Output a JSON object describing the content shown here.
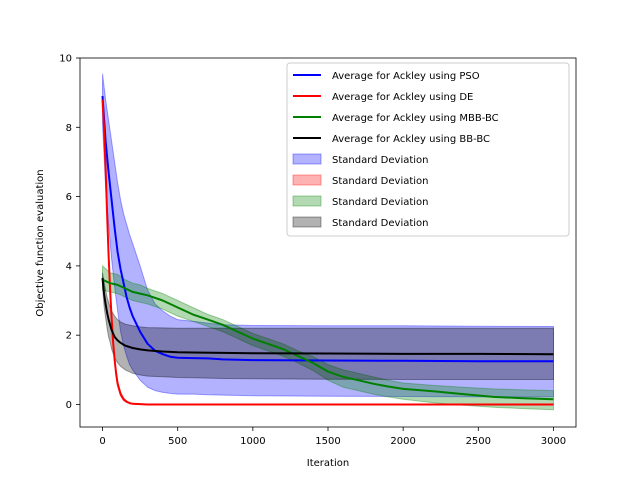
{
  "chart_data": {
    "type": "line",
    "title": "",
    "xlabel": "Iteration",
    "ylabel": "Objective function evaluation",
    "xlim": [
      -150,
      3150
    ],
    "ylim": [
      -0.65,
      10.0
    ],
    "xticks": [
      0,
      500,
      1000,
      1500,
      2000,
      2500,
      3000
    ],
    "yticks": [
      0,
      2,
      4,
      6,
      8,
      10
    ],
    "grid": false,
    "legend_position": "top-right",
    "series": [
      {
        "name": "Average for Ackley using PSO",
        "color": "#0000ff",
        "std_name": "Standard Deviation",
        "x": [
          0,
          20,
          40,
          60,
          80,
          100,
          120,
          140,
          160,
          180,
          200,
          250,
          300,
          350,
          400,
          450,
          500,
          600,
          700,
          800,
          1000,
          1500,
          2000,
          2500,
          3000
        ],
        "y": [
          8.9,
          7.6,
          6.7,
          5.9,
          5.1,
          4.4,
          3.9,
          3.5,
          3.1,
          2.8,
          2.55,
          2.1,
          1.75,
          1.55,
          1.45,
          1.38,
          1.35,
          1.34,
          1.33,
          1.3,
          1.28,
          1.27,
          1.26,
          1.25,
          1.25
        ],
        "upper": [
          9.55,
          8.8,
          8.2,
          7.6,
          7.0,
          6.4,
          5.9,
          5.5,
          5.2,
          4.9,
          4.65,
          4.0,
          3.3,
          2.9,
          2.7,
          2.55,
          2.45,
          2.4,
          2.35,
          2.3,
          2.28,
          2.27,
          2.27,
          2.26,
          2.25
        ],
        "lower": [
          8.1,
          6.3,
          5.2,
          4.2,
          3.4,
          2.7,
          2.1,
          1.7,
          1.4,
          1.15,
          1.0,
          0.7,
          0.5,
          0.4,
          0.35,
          0.32,
          0.3,
          0.3,
          0.28,
          0.27,
          0.25,
          0.24,
          0.23,
          0.22,
          0.22
        ]
      },
      {
        "name": "Average for Ackley using DE",
        "color": "#ff0000",
        "std_name": "Standard Deviation",
        "x": [
          0,
          10,
          20,
          30,
          40,
          50,
          60,
          70,
          80,
          90,
          100,
          120,
          140,
          160,
          180,
          200,
          250,
          300,
          400,
          500,
          1000,
          2000,
          3000
        ],
        "y": [
          8.8,
          8.0,
          6.8,
          5.5,
          4.3,
          3.3,
          2.5,
          1.8,
          1.3,
          0.9,
          0.6,
          0.3,
          0.15,
          0.08,
          0.04,
          0.02,
          0.01,
          0.0,
          0.0,
          0.0,
          0.0,
          0.0,
          0.0
        ],
        "upper": [
          8.9,
          8.15,
          6.95,
          5.65,
          4.45,
          3.45,
          2.6,
          1.9,
          1.4,
          1.0,
          0.68,
          0.36,
          0.19,
          0.1,
          0.05,
          0.03,
          0.015,
          0.01,
          0.01,
          0.01,
          0.01,
          0.01,
          0.01
        ],
        "lower": [
          8.7,
          7.85,
          6.65,
          5.35,
          4.15,
          3.15,
          2.4,
          1.7,
          1.2,
          0.8,
          0.52,
          0.24,
          0.11,
          0.06,
          0.03,
          0.01,
          0.005,
          0.0,
          0.0,
          0.0,
          0.0,
          0.0,
          0.0
        ]
      },
      {
        "name": "Average for Ackley using MBB-BC",
        "color": "#008000",
        "std_name": "Standard Deviation",
        "x": [
          0,
          50,
          100,
          150,
          200,
          250,
          300,
          400,
          500,
          600,
          700,
          800,
          900,
          1000,
          1100,
          1200,
          1300,
          1400,
          1500,
          1600,
          1700,
          1800,
          1900,
          2000,
          2200,
          2400,
          2600,
          2800,
          3000
        ],
        "y": [
          3.6,
          3.5,
          3.45,
          3.35,
          3.25,
          3.2,
          3.15,
          3.0,
          2.8,
          2.6,
          2.45,
          2.3,
          2.1,
          1.9,
          1.75,
          1.6,
          1.4,
          1.2,
          0.95,
          0.8,
          0.7,
          0.6,
          0.52,
          0.45,
          0.38,
          0.3,
          0.22,
          0.18,
          0.15
        ],
        "upper": [
          4.0,
          3.8,
          3.75,
          3.6,
          3.5,
          3.45,
          3.35,
          3.2,
          3.0,
          2.8,
          2.6,
          2.45,
          2.25,
          2.05,
          1.9,
          1.75,
          1.55,
          1.38,
          1.15,
          1.0,
          0.9,
          0.8,
          0.7,
          0.62,
          0.55,
          0.5,
          0.45,
          0.42,
          0.4
        ],
        "lower": [
          3.3,
          3.25,
          3.2,
          3.1,
          3.0,
          2.95,
          2.9,
          2.75,
          2.55,
          2.4,
          2.25,
          2.1,
          1.9,
          1.7,
          1.55,
          1.4,
          1.2,
          0.98,
          0.7,
          0.5,
          0.4,
          0.3,
          0.22,
          0.15,
          0.05,
          -0.02,
          -0.08,
          -0.12,
          -0.15
        ]
      },
      {
        "name": "Average for Ackley using BB-BC",
        "color": "#000000",
        "std_name": "Standard Deviation",
        "x": [
          0,
          10,
          20,
          30,
          40,
          50,
          60,
          80,
          100,
          120,
          150,
          200,
          250,
          300,
          400,
          500,
          600,
          800,
          1000,
          1500,
          2000,
          2500,
          3000
        ],
        "y": [
          3.65,
          3.2,
          2.9,
          2.65,
          2.45,
          2.3,
          2.15,
          1.95,
          1.85,
          1.78,
          1.7,
          1.63,
          1.59,
          1.56,
          1.53,
          1.51,
          1.5,
          1.49,
          1.48,
          1.47,
          1.46,
          1.46,
          1.45
        ],
        "upper": [
          3.8,
          3.55,
          3.3,
          3.1,
          2.95,
          2.8,
          2.7,
          2.55,
          2.45,
          2.38,
          2.32,
          2.27,
          2.24,
          2.22,
          2.21,
          2.2,
          2.2,
          2.2,
          2.2,
          2.2,
          2.2,
          2.2,
          2.2
        ],
        "lower": [
          3.45,
          2.85,
          2.5,
          2.2,
          1.95,
          1.8,
          1.6,
          1.35,
          1.2,
          1.1,
          1.0,
          0.9,
          0.85,
          0.82,
          0.8,
          0.78,
          0.77,
          0.75,
          0.74,
          0.73,
          0.72,
          0.72,
          0.72
        ]
      }
    ]
  },
  "legend": {
    "entries": [
      {
        "label": "Average for Ackley using PSO",
        "kind": "line",
        "color": "#0000ff"
      },
      {
        "label": "Average for Ackley using DE",
        "kind": "line",
        "color": "#ff0000"
      },
      {
        "label": "Average for Ackley using MBB-BC",
        "kind": "line",
        "color": "#008000"
      },
      {
        "label": "Average for Ackley using BB-BC",
        "kind": "line",
        "color": "#000000"
      },
      {
        "label": "Standard Deviation",
        "kind": "patch",
        "color": "#0000ff"
      },
      {
        "label": "Standard Deviation",
        "kind": "patch",
        "color": "#ff0000"
      },
      {
        "label": "Standard Deviation",
        "kind": "patch",
        "color": "#008000"
      },
      {
        "label": "Standard Deviation",
        "kind": "patch",
        "color": "#000000"
      }
    ]
  }
}
